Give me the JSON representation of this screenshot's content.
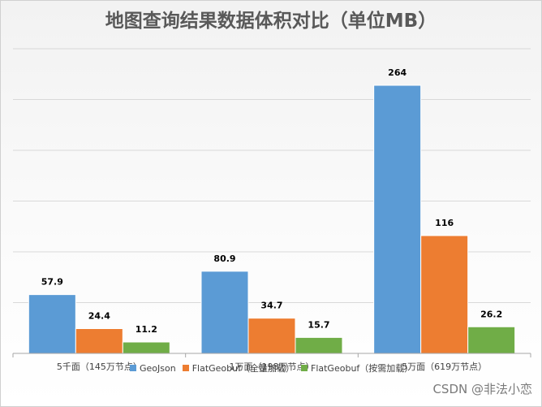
{
  "chart_data": {
    "type": "bar",
    "title": "地图查询结果数据体积对比（单位MB）",
    "categories": [
      "5千面（145万节点）",
      "1万面（198万节点）",
      "5万面（619万节点）"
    ],
    "series": [
      {
        "name": "GeoJson",
        "values": [
          57.9,
          80.9,
          264
        ],
        "labels": [
          "57.9",
          "80.9",
          "264"
        ],
        "color": "#5b9bd5"
      },
      {
        "name": "FlatGeobuf（全量加载）",
        "values": [
          24.4,
          34.7,
          116
        ],
        "labels": [
          "24.4",
          "34.7",
          "116"
        ],
        "color": "#ed7d31"
      },
      {
        "name": "FlatGeobuf（按需加载）",
        "values": [
          11.2,
          15.7,
          26.2
        ],
        "labels": [
          "11.2",
          "15.7",
          "26.2"
        ],
        "color": "#70ad47"
      }
    ],
    "ylim": [
      0,
      300
    ],
    "grid": true,
    "legend": "bottom"
  },
  "watermark": "CSDN @非法小恋"
}
